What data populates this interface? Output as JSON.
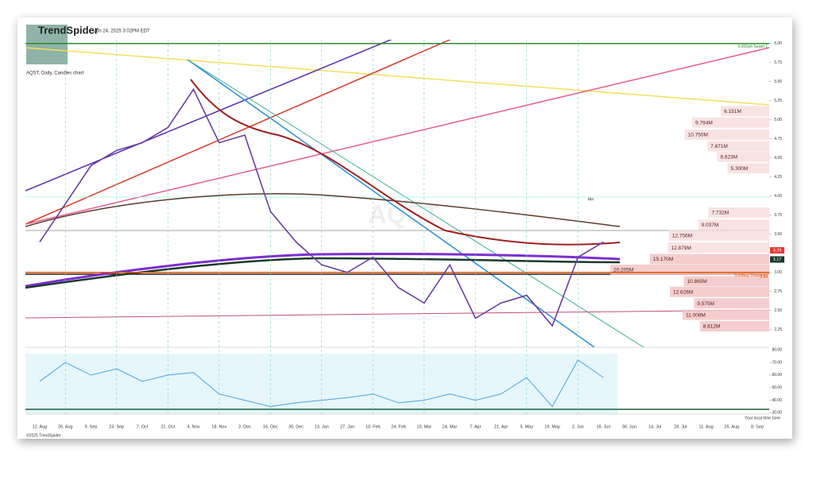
{
  "header": {
    "brand": "TrendSpider",
    "timestamp": "Jun 24, 2025 3:02PM EDT",
    "subtitle": "AQST, Daily, Candles chart",
    "watermark": "AQST",
    "copyright": "©2025 TrendSpider",
    "timezone_note": "Your local time zone"
  },
  "chart_data": [
    {
      "type": "line",
      "categories": [
        "12. Aug",
        "26. Aug",
        "9. Sep",
        "23. Sep",
        "7. Oct",
        "21. Oct",
        "4. Nov",
        "18. Nov",
        "2. Dec",
        "16. Dec",
        "30. Dec",
        "13. Jan",
        "27. Jan",
        "10. Feb",
        "24. Feb",
        "10. Mar",
        "24. Mar",
        "7. Apr",
        "21. Apr",
        "5. May",
        "19. May",
        "2. Jun",
        "16. Jun",
        "30. Jun",
        "14. Jul",
        "28. Jul",
        "11. Aug",
        "25. Aug",
        "8. Sep"
      ],
      "series": [
        {
          "color": "#6a3fa0",
          "values": [
            3.4,
            3.9,
            4.4,
            4.6,
            4.7,
            4.9,
            5.4,
            4.7,
            4.8,
            3.8,
            3.4,
            3.1,
            3.0,
            3.2,
            2.8,
            2.6,
            3.1,
            2.4,
            2.6,
            2.7,
            2.3,
            3.2,
            3.4,
            null,
            null,
            null,
            null,
            null,
            null
          ]
        }
      ],
      "ylim": [
        2.05,
        6.05
      ],
      "yticks": [
        {
          "value": 2.25,
          "label": "2.25"
        },
        {
          "value": 2.5,
          "label": "2.50"
        },
        {
          "value": 2.75,
          "label": "2.75"
        },
        {
          "value": 3.0,
          "label": "3.00"
        },
        {
          "value": 3.5,
          "label": "3.50"
        },
        {
          "value": 3.75,
          "label": "3.75"
        },
        {
          "value": 4.0,
          "label": "4.00"
        },
        {
          "value": 4.25,
          "label": "4.25"
        },
        {
          "value": 4.5,
          "label": "4.50"
        },
        {
          "value": 4.75,
          "label": "4.75"
        },
        {
          "value": 5.0,
          "label": "5.00"
        },
        {
          "value": 5.25,
          "label": "5.25"
        },
        {
          "value": 5.5,
          "label": "5.50"
        },
        {
          "value": 5.75,
          "label": "5.75"
        },
        {
          "value": 6.0,
          "label": "6.00"
        }
      ],
      "price_labels": [
        {
          "value": 3.29,
          "color": "#e53935"
        },
        {
          "value": 3.17,
          "color": "#1b3a2a"
        }
      ],
      "levels": [
        {
          "value": 6.0,
          "label": "6.00Sell Target 1",
          "color": "#2e8b2e"
        },
        {
          "value": 3.0,
          "label": "3.00Buy Threshold",
          "color": "#e65100"
        }
      ],
      "level_note": 2.94,
      "marker": "HH",
      "volume_tick": {
        "value": 80,
        "label": "80.00"
      },
      "volume_profile": {
        "prices": [
          5.11,
          4.96,
          4.8,
          4.65,
          4.51,
          4.36,
          3.78,
          3.62,
          3.48,
          3.32,
          3.17,
          3.03,
          2.88,
          2.74,
          2.59,
          2.44,
          2.29
        ],
        "values": [
          6.151,
          9.794,
          10.75,
          7.871,
          6.623,
          5.3,
          7.732,
          9.037,
          12.756,
          12.879,
          15.17,
          20.205,
          10.865,
          12.626,
          9.575,
          11.008,
          8.812
        ],
        "value_labels": [
          "6.151M",
          "9.794M",
          "10.750M",
          "7.871M",
          "6.623M",
          "5.300M",
          "7.732M",
          "9.037M",
          "12.756M",
          "12.879M",
          "15.170M",
          "20.205M",
          "10.865M",
          "12.626M",
          "9.575M",
          "11.008M",
          "8.812M"
        ]
      }
    },
    {
      "type": "line",
      "series": [
        {
          "color": "#4aa3df",
          "values": [
            55,
            70,
            60,
            65,
            55,
            60,
            62,
            45,
            40,
            35,
            38,
            40,
            42,
            45,
            38,
            40,
            45,
            40,
            45,
            58,
            35,
            72,
            58,
            null,
            null,
            null,
            null,
            null,
            null
          ]
        }
      ],
      "ylim": [
        29,
        77
      ],
      "yticks": [
        {
          "value": 30,
          "label": "30.00"
        },
        {
          "value": 40,
          "label": "40.00"
        },
        {
          "value": 50,
          "label": "50.00"
        },
        {
          "value": 60,
          "label": "60.00"
        },
        {
          "value": 70,
          "label": "70.00"
        }
      ]
    }
  ]
}
